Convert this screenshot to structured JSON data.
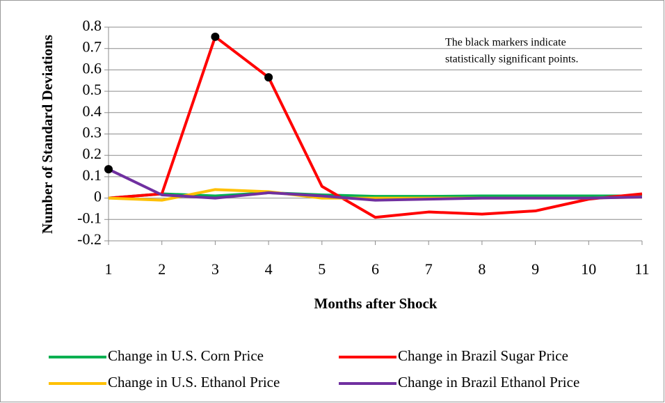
{
  "chart_data": {
    "type": "line",
    "x_label": "Months after Shock",
    "y_label": "Number of Standard Deviations",
    "annotation": [
      "The black markers indicate",
      "statistically significant points."
    ],
    "x": [
      1,
      2,
      3,
      4,
      5,
      6,
      7,
      8,
      9,
      10,
      11
    ],
    "xlim": [
      1,
      11
    ],
    "xticks": [
      1,
      2,
      3,
      4,
      5,
      6,
      7,
      8,
      9,
      10,
      11
    ],
    "ylim": [
      -0.2,
      0.8
    ],
    "yticks": [
      -0.2,
      -0.1,
      0,
      0.1,
      0.2,
      0.3,
      0.4,
      0.5,
      0.6,
      0.7,
      0.8
    ],
    "grid": true,
    "marker_color": "#000000",
    "series": [
      {
        "name": "Change in U.S. Corn Price",
        "color": "#00b050",
        "values": [
          0,
          0.02,
          0.01,
          0.025,
          0.015,
          0.008,
          0.008,
          0.01,
          0.01,
          0.01,
          0.01
        ],
        "significant": []
      },
      {
        "name": "Change in Brazil Sugar Price",
        "color": "#ff0000",
        "values": [
          0,
          0.02,
          0.755,
          0.565,
          0.055,
          -0.09,
          -0.065,
          -0.075,
          -0.06,
          -0.005,
          0.02
        ],
        "significant": [
          2,
          3
        ]
      },
      {
        "name": "Change in U.S. Ethanol Price",
        "color": "#ffc000",
        "values": [
          0,
          -0.01,
          0.04,
          0.03,
          0,
          0,
          0,
          0,
          0,
          0,
          0.005
        ],
        "significant": []
      },
      {
        "name": "Change in Brazil Ethanol Price",
        "color": "#7030a0",
        "values": [
          0.135,
          0.015,
          0,
          0.025,
          0.01,
          -0.01,
          -0.005,
          0,
          0,
          0,
          0.005
        ],
        "significant": [
          0
        ]
      }
    ]
  }
}
